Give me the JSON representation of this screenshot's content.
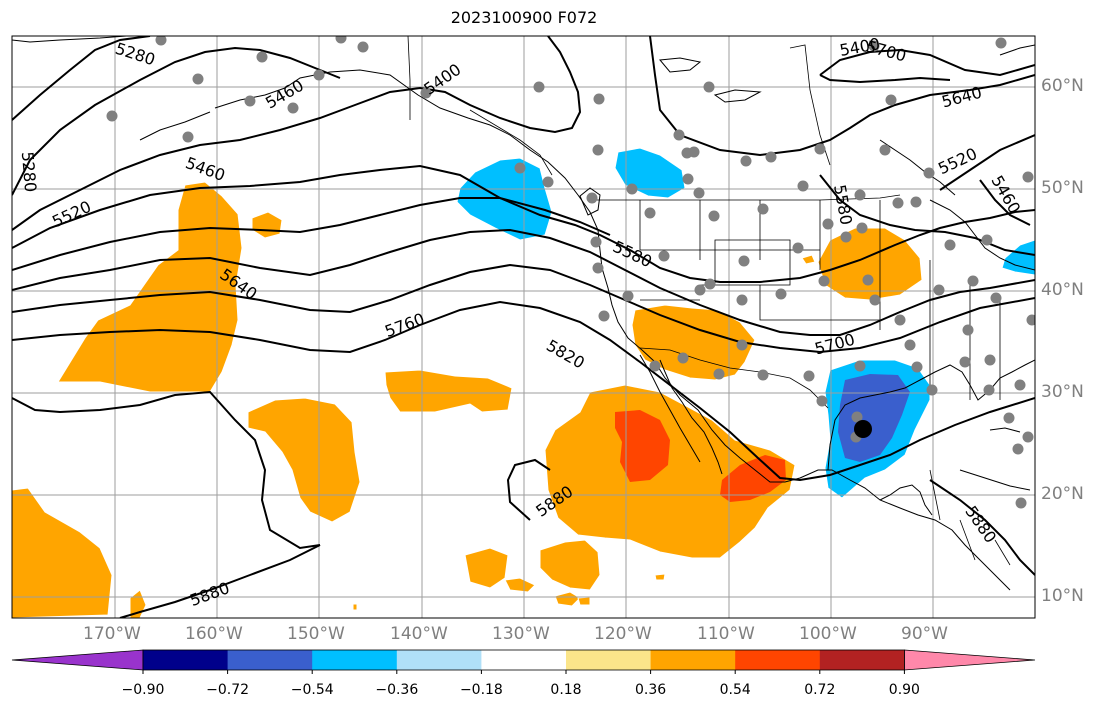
{
  "title": "2023100900 F072",
  "map": {
    "longitude_labels": [
      "170°W",
      "160°W",
      "150°W",
      "140°W",
      "130°W",
      "120°W",
      "110°W",
      "100°W",
      "90°W"
    ],
    "latitude_labels": [
      "60°N",
      "50°N",
      "40°N",
      "30°N",
      "20°N",
      "10°N"
    ],
    "contour_labels": [
      "5280",
      "5400",
      "5460",
      "5520",
      "5580",
      "5640",
      "5700",
      "5760",
      "5820",
      "5880",
      "5460",
      "5520",
      "5580",
      "5640",
      "5700",
      "5880",
      "5880",
      "5280",
      "5460",
      "5400"
    ],
    "colors": {
      "ocean": "#ffffff",
      "grid": "#9e9e9e",
      "coast": "#000000",
      "station": "#808080"
    }
  },
  "colorbar": {
    "ticks": [
      "−0.90",
      "−0.72",
      "−0.54",
      "−0.36",
      "−0.18",
      "0.18",
      "0.36",
      "0.54",
      "0.72",
      "0.90"
    ],
    "colors": [
      "#9933cc",
      "#00008b",
      "#3a5fcd",
      "#00bfff",
      "#b0e0f8",
      "#ffffff",
      "#fbe58a",
      "#ffa500",
      "#ff4500",
      "#b22222",
      "#ff88aa"
    ]
  }
}
